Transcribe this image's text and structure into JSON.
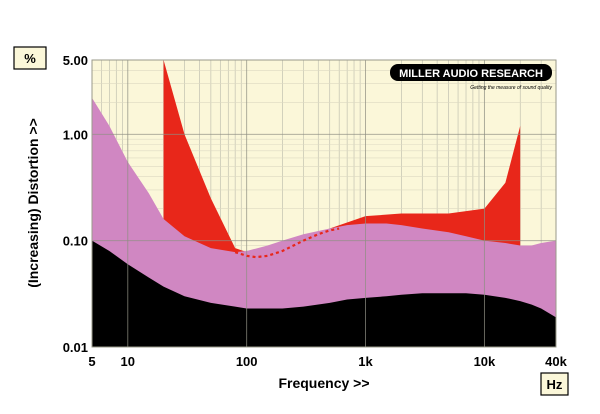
{
  "chart_data": {
    "type": "area",
    "xlabel": "Frequency >>",
    "ylabel": "(Increasing) Distortion >>",
    "x_unit": "Hz",
    "y_unit": "%",
    "xscale": "log",
    "yscale": "log",
    "xlim": [
      5,
      40000
    ],
    "ylim": [
      0.01,
      5
    ],
    "x_ticks": [
      {
        "value": 5,
        "label": "5"
      },
      {
        "value": 10,
        "label": "10"
      },
      {
        "value": 100,
        "label": "100"
      },
      {
        "value": 1000,
        "label": "1k"
      },
      {
        "value": 10000,
        "label": "10k"
      },
      {
        "value": 40000,
        "label": "40k"
      }
    ],
    "y_ticks": [
      {
        "value": 0.01,
        "label": "0.01"
      },
      {
        "value": 0.1,
        "label": "0.10"
      },
      {
        "value": 1,
        "label": "1.00"
      },
      {
        "value": 5,
        "label": "5.00"
      }
    ],
    "grid": true,
    "series": [
      {
        "color": "#e8271a",
        "x": [
          20,
          20,
          30,
          50,
          80,
          120,
          200,
          500,
          1000,
          2000,
          5000,
          10000,
          15000,
          20000,
          20000
        ],
        "y": [
          0.12,
          5.0,
          1.0,
          0.25,
          0.085,
          0.073,
          0.085,
          0.13,
          0.17,
          0.18,
          0.18,
          0.2,
          0.35,
          1.2,
          0.09
        ]
      },
      {
        "color": "#d087c2",
        "x": [
          5,
          7,
          10,
          15,
          20,
          30,
          50,
          80,
          100,
          150,
          200,
          300,
          500,
          700,
          1000,
          1500,
          2000,
          3000,
          5000,
          7000,
          10000,
          15000,
          20000,
          25000,
          30000,
          40000
        ],
        "y": [
          2.2,
          1.2,
          0.55,
          0.28,
          0.16,
          0.11,
          0.085,
          0.078,
          0.08,
          0.09,
          0.1,
          0.115,
          0.13,
          0.14,
          0.145,
          0.145,
          0.14,
          0.13,
          0.12,
          0.11,
          0.1,
          0.095,
          0.09,
          0.09,
          0.095,
          0.1
        ]
      },
      {
        "color": "#000000",
        "x": [
          5,
          7,
          10,
          15,
          20,
          30,
          50,
          80,
          100,
          150,
          200,
          300,
          500,
          700,
          1000,
          1500,
          2000,
          3000,
          5000,
          7000,
          10000,
          15000,
          20000,
          25000,
          30000,
          40000
        ],
        "y": [
          0.1,
          0.08,
          0.06,
          0.045,
          0.037,
          0.03,
          0.026,
          0.024,
          0.023,
          0.023,
          0.023,
          0.024,
          0.026,
          0.028,
          0.029,
          0.03,
          0.031,
          0.032,
          0.032,
          0.032,
          0.031,
          0.029,
          0.027,
          0.025,
          0.023,
          0.019
        ]
      }
    ],
    "overlay_dashed": {
      "color": "#e8271a",
      "x": [
        80,
        100,
        120,
        150,
        200,
        300,
        400,
        500,
        600
      ],
      "y": [
        0.078,
        0.072,
        0.07,
        0.072,
        0.08,
        0.1,
        0.115,
        0.125,
        0.13
      ]
    },
    "logo": {
      "title": "MILLER AUDIO RESEARCH",
      "tagline": "Getting the measure of sound quality"
    }
  }
}
